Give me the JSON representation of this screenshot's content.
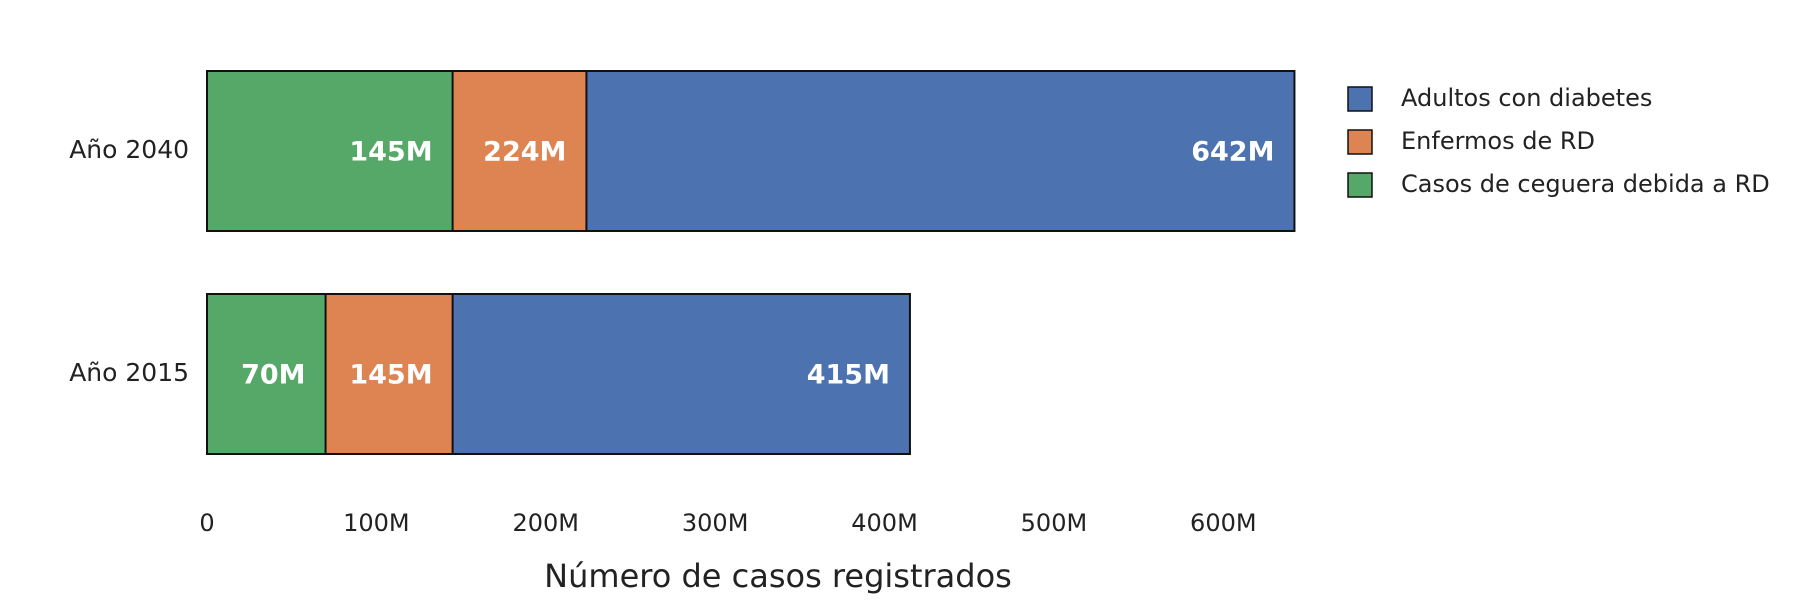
{
  "chart_data": {
    "type": "bar",
    "orientation": "horizontal",
    "xlabel": "Número de casos registrados",
    "categories": [
      "Año 2040",
      "Año 2015"
    ],
    "series": [
      {
        "name": "Adultos con diabetes",
        "color": "#4c72b0",
        "values": [
          642,
          415
        ],
        "value_labels": [
          "642M",
          "415M"
        ]
      },
      {
        "name": "Enfermos de RD",
        "color": "#dd8452",
        "values": [
          224,
          145
        ],
        "value_labels": [
          "224M",
          "145M"
        ]
      },
      {
        "name": "Casos de ceguera debida a RD",
        "color": "#55a868",
        "values": [
          145,
          70
        ],
        "value_labels": [
          "145M",
          "70M"
        ]
      }
    ],
    "xlim": [
      0,
      650
    ],
    "xticks": [
      0,
      {
        "value": 100,
        "label": "100M"
      },
      {
        "value": 200,
        "label": "200M"
      },
      {
        "value": 300,
        "label": "300M"
      },
      {
        "value": 400,
        "label": "400M"
      },
      {
        "value": 500,
        "label": "500M"
      },
      {
        "value": 600,
        "label": "600M"
      }
    ],
    "legend": "upper right"
  }
}
